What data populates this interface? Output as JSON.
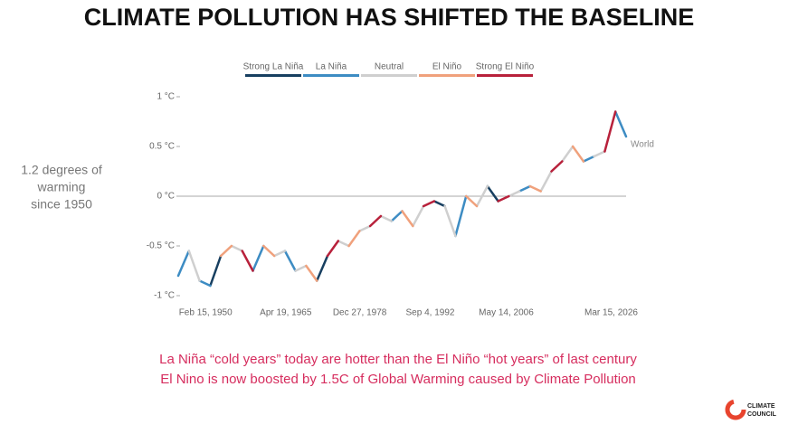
{
  "chart_data": {
    "type": "line",
    "title": "CLIMATE POLLUTION HAS SHIFTED THE BASELINE",
    "side_note": [
      "1.2 degrees of",
      "warming",
      "since 1950"
    ],
    "end_label": "World",
    "captions": [
      "La Niña “cold years” today are hotter than the El Niño “hot years” of last century",
      "El Nino is now boosted by 1.5C of Global Warming caused by Climate Pollution"
    ],
    "logo": [
      "CLIMATE",
      "COUNCIL"
    ],
    "legend": "top",
    "zero_line": true,
    "xlim": [
      1950,
      2034
    ],
    "xticks": [
      {
        "value": 1950.12,
        "label": "Feb 15, 1950"
      },
      {
        "value": 1965.3,
        "label": "Apr 19, 1965"
      },
      {
        "value": 1978.99,
        "label": "Dec 27, 1978"
      },
      {
        "value": 1992.68,
        "label": "Sep 4, 1992"
      },
      {
        "value": 2006.37,
        "label": "May 14, 2006"
      },
      {
        "value": 2026.2,
        "label": "Mar 15, 2026"
      }
    ],
    "ylim": [
      -1,
      1
    ],
    "yticks": [
      {
        "value": 1,
        "label": "1 °C"
      },
      {
        "value": 0.5,
        "label": "0.5 °C"
      },
      {
        "value": 0,
        "label": "0 °C"
      },
      {
        "value": -0.5,
        "label": "-0.5 °C"
      },
      {
        "value": -1,
        "label": "-1 °C"
      }
    ],
    "series": [
      {
        "name": "Strong La Niña",
        "color": "#173f60",
        "x": [
          1956,
          1958,
          null,
          1976,
          1978,
          null,
          1998,
          2000,
          null,
          2008,
          2010
        ],
        "values": [
          -0.9,
          -0.6,
          null,
          -0.85,
          -0.6,
          null,
          -0.05,
          -0.1,
          null,
          0.1,
          -0.05
        ]
      },
      {
        "name": "La Niña",
        "color": "#3d8cc3",
        "x": [
          1950,
          1952,
          null,
          1954,
          1956,
          null,
          1964,
          1966,
          null,
          1970,
          1972,
          null,
          1990,
          1992,
          null,
          2002,
          2004,
          null,
          2014,
          2016,
          null,
          2026,
          2028,
          null,
          2032,
          2034
        ],
        "values": [
          -0.8,
          -0.55,
          null,
          -0.85,
          -0.9,
          null,
          -0.75,
          -0.5,
          null,
          -0.55,
          -0.75,
          null,
          -0.25,
          -0.15,
          null,
          -0.4,
          0.0,
          null,
          0.05,
          0.1,
          null,
          0.35,
          0.4,
          null,
          0.85,
          0.6
        ]
      },
      {
        "name": "Neutral",
        "color": "#cfcfcf",
        "x": [
          1952,
          1954,
          null,
          1960,
          1962,
          null,
          1968,
          1970,
          null,
          1972,
          1974,
          null,
          1980,
          1982,
          null,
          1984,
          1986,
          null,
          1988,
          1990,
          null,
          1994,
          1996,
          null,
          2000,
          2002,
          null,
          2006,
          2008,
          null,
          2012,
          2014,
          null,
          2018,
          2020,
          null,
          2022,
          2024,
          null,
          2028,
          2030
        ],
        "values": [
          -0.55,
          -0.85,
          null,
          -0.5,
          -0.55,
          null,
          -0.6,
          -0.55,
          null,
          -0.75,
          -0.7,
          null,
          -0.45,
          -0.5,
          null,
          -0.35,
          -0.3,
          null,
          -0.2,
          -0.25,
          null,
          -0.3,
          -0.1,
          null,
          -0.1,
          -0.4,
          null,
          -0.1,
          0.1,
          null,
          0.0,
          0.05,
          null,
          0.05,
          0.25,
          null,
          0.35,
          0.5,
          null,
          0.4,
          0.45
        ]
      },
      {
        "name": "El Niño",
        "color": "#f0a17c",
        "x": [
          1958,
          1960,
          null,
          1966,
          1968,
          null,
          1974,
          1976,
          null,
          1982,
          1984,
          null,
          1992,
          1994,
          null,
          2004,
          2006,
          null,
          2016,
          2018,
          null,
          2024,
          2026
        ],
        "values": [
          -0.6,
          -0.5,
          null,
          -0.5,
          -0.6,
          null,
          -0.7,
          -0.85,
          null,
          -0.5,
          -0.35,
          null,
          -0.15,
          -0.3,
          null,
          0.0,
          -0.1,
          null,
          0.1,
          0.05,
          null,
          0.5,
          0.35
        ]
      },
      {
        "name": "Strong El Niño",
        "color": "#b8213b",
        "x": [
          1962,
          1964,
          null,
          1978,
          1980,
          null,
          1986,
          1988,
          null,
          1996,
          1998,
          null,
          2010,
          2012,
          null,
          2020,
          2022,
          null,
          2030,
          2032
        ],
        "values": [
          -0.55,
          -0.75,
          null,
          -0.6,
          -0.45,
          null,
          -0.3,
          -0.2,
          null,
          -0.1,
          -0.05,
          null,
          -0.05,
          0.0,
          null,
          0.25,
          0.35,
          null,
          0.45,
          0.85
        ]
      }
    ]
  }
}
